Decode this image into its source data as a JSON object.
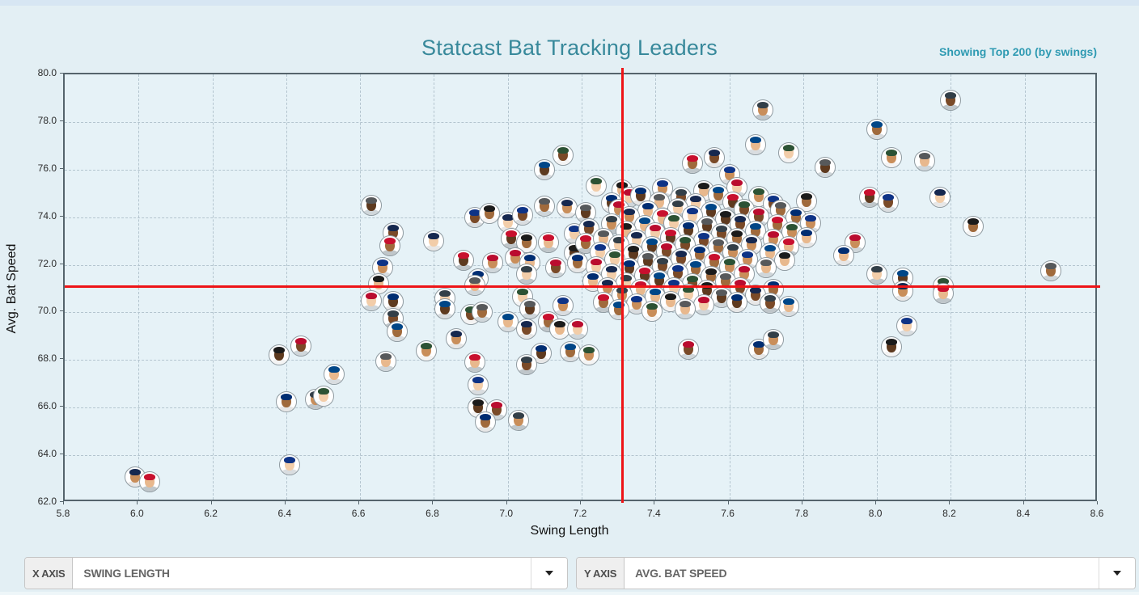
{
  "header": {
    "title": "Statcast Bat Tracking Leaders",
    "subtitle_right": "Showing Top 200 (by swings)"
  },
  "controls": {
    "x_axis": {
      "label": "X AXIS",
      "value": "SWING LENGTH",
      "dropdown_icon": "caret-down"
    },
    "y_axis": {
      "label": "Y AXIS",
      "value": "AVG. BAT SPEED",
      "dropdown_icon": "caret-down"
    }
  },
  "colors": {
    "title_teal": "#38899b",
    "note_teal": "#2e9ab2",
    "crosshair_red": "#ee1417",
    "plot_bg": "#e6f2f7",
    "page_bg": "#e3eff4",
    "grid": "#b4c5cf"
  },
  "avatar_palette": {
    "caps": [
      "#16284f",
      "#c8102e",
      "#0e3386",
      "#1b1b1b",
      "#ba0c2f",
      "#002d72",
      "#333f48",
      "#004687",
      "#2c5234",
      "#57595b"
    ],
    "skins": [
      "#f2cda9",
      "#e8b88d",
      "#c98e5a",
      "#a06a3c",
      "#7a4a28",
      "#5e3a1f"
    ],
    "jerseys": [
      "#f4f4f4",
      "#e7e7e7",
      "#d9dde0",
      "#cfd6da",
      "#bfc6ca"
    ]
  },
  "chart_data": {
    "type": "scatter",
    "title": "Statcast Bat Tracking Leaders",
    "xlabel": "Swing Length",
    "ylabel": "Avg. Bat Speed",
    "xlim": [
      5.8,
      8.6
    ],
    "ylim": [
      62.0,
      80.0
    ],
    "x_ticks": [
      5.8,
      6.0,
      6.2,
      6.4,
      6.6,
      6.8,
      7.0,
      7.2,
      7.4,
      7.6,
      7.8,
      8.0,
      8.2,
      8.4,
      8.6
    ],
    "y_ticks": [
      62.0,
      64.0,
      66.0,
      68.0,
      70.0,
      72.0,
      74.0,
      76.0,
      78.0,
      80.0
    ],
    "grid": "dashed",
    "legend": "none",
    "marker": "player-headshot-circle",
    "avg_lines": {
      "x": 7.31,
      "y": 71.1,
      "color": "#ee1417"
    },
    "points": [
      [
        5.99,
        63.1
      ],
      [
        6.03,
        62.9
      ],
      [
        6.41,
        63.6
      ],
      [
        6.38,
        68.2
      ],
      [
        6.44,
        68.6
      ],
      [
        6.4,
        66.25
      ],
      [
        6.48,
        66.35
      ],
      [
        6.53,
        67.4
      ],
      [
        6.5,
        66.5
      ],
      [
        6.63,
        74.5
      ],
      [
        6.69,
        73.35
      ],
      [
        6.68,
        72.8
      ],
      [
        6.66,
        71.9
      ],
      [
        6.65,
        71.2
      ],
      [
        6.63,
        70.5
      ],
      [
        6.69,
        70.45
      ],
      [
        6.69,
        69.75
      ],
      [
        6.7,
        69.2
      ],
      [
        6.78,
        68.4
      ],
      [
        6.67,
        67.95
      ],
      [
        6.8,
        73.0
      ],
      [
        6.88,
        72.2
      ],
      [
        6.91,
        74.0
      ],
      [
        6.95,
        74.15
      ],
      [
        6.96,
        72.1
      ],
      [
        6.92,
        71.4
      ],
      [
        6.83,
        70.6
      ],
      [
        6.83,
        70.15
      ],
      [
        6.9,
        69.9
      ],
      [
        6.93,
        70.0
      ],
      [
        6.86,
        68.9
      ],
      [
        6.91,
        67.9
      ],
      [
        6.92,
        66.95
      ],
      [
        6.92,
        66.0
      ],
      [
        6.97,
        65.9
      ],
      [
        6.94,
        65.4
      ],
      [
        7.03,
        65.45
      ],
      [
        7.0,
        69.6
      ],
      [
        7.04,
        70.65
      ],
      [
        7.06,
        70.15
      ],
      [
        7.05,
        69.3
      ],
      [
        7.11,
        69.6
      ],
      [
        7.15,
        70.3
      ],
      [
        7.14,
        69.3
      ],
      [
        7.19,
        69.3
      ],
      [
        7.09,
        68.3
      ],
      [
        7.05,
        67.8
      ],
      [
        7.17,
        68.35
      ],
      [
        7.22,
        68.2
      ],
      [
        6.91,
        71.15
      ],
      [
        7.0,
        73.8
      ],
      [
        7.01,
        73.1
      ],
      [
        7.04,
        74.1
      ],
      [
        7.05,
        72.95
      ],
      [
        7.02,
        72.3
      ],
      [
        7.06,
        72.1
      ],
      [
        7.05,
        71.6
      ],
      [
        7.1,
        76.0
      ],
      [
        7.15,
        76.6
      ],
      [
        7.1,
        74.45
      ],
      [
        7.16,
        74.4
      ],
      [
        7.11,
        72.95
      ],
      [
        7.18,
        73.3
      ],
      [
        7.18,
        72.5
      ],
      [
        7.13,
        71.9
      ],
      [
        7.19,
        72.1
      ],
      [
        7.69,
        78.5
      ],
      [
        7.67,
        77.05
      ],
      [
        7.76,
        76.7
      ],
      [
        7.86,
        76.1
      ],
      [
        7.56,
        76.5
      ],
      [
        7.5,
        76.25
      ],
      [
        7.6,
        75.8
      ],
      [
        7.31,
        75.15
      ],
      [
        7.33,
        74.85
      ],
      [
        7.28,
        74.6
      ],
      [
        8.2,
        78.9
      ],
      [
        8.0,
        77.7
      ],
      [
        8.04,
        76.5
      ],
      [
        8.13,
        76.35
      ],
      [
        8.17,
        74.85
      ],
      [
        7.98,
        74.85
      ],
      [
        8.03,
        74.65
      ],
      [
        8.26,
        73.6
      ],
      [
        7.94,
        72.95
      ],
      [
        7.91,
        72.4
      ],
      [
        8.0,
        71.6
      ],
      [
        8.07,
        71.45
      ],
      [
        8.18,
        71.1
      ],
      [
        8.47,
        71.75
      ],
      [
        8.07,
        70.9
      ],
      [
        8.18,
        70.8
      ],
      [
        8.08,
        69.45
      ],
      [
        8.04,
        68.55
      ],
      [
        7.49,
        68.45
      ],
      [
        7.68,
        68.45
      ],
      [
        7.72,
        68.85
      ],
      [
        7.76,
        70.25
      ],
      [
        7.24,
        75.3
      ],
      [
        7.21,
        74.2
      ],
      [
        7.22,
        73.5
      ],
      [
        7.21,
        72.9
      ],
      [
        7.42,
        75.22
      ],
      [
        7.53,
        75.12
      ],
      [
        7.62,
        75.25
      ],
      [
        7.36,
        74.92
      ],
      [
        7.47,
        74.85
      ],
      [
        7.57,
        74.95
      ],
      [
        7.68,
        74.88
      ],
      [
        7.41,
        74.62
      ],
      [
        7.51,
        74.55
      ],
      [
        7.61,
        74.65
      ],
      [
        7.72,
        74.58
      ],
      [
        7.81,
        74.68
      ],
      [
        7.3,
        74.32
      ],
      [
        7.38,
        74.25
      ],
      [
        7.46,
        74.35
      ],
      [
        7.55,
        74.22
      ],
      [
        7.64,
        74.32
      ],
      [
        7.74,
        74.28
      ],
      [
        7.33,
        74.02
      ],
      [
        7.42,
        73.95
      ],
      [
        7.5,
        74.05
      ],
      [
        7.59,
        73.92
      ],
      [
        7.68,
        74.02
      ],
      [
        7.78,
        73.98
      ],
      [
        7.28,
        73.72
      ],
      [
        7.37,
        73.65
      ],
      [
        7.45,
        73.75
      ],
      [
        7.54,
        73.62
      ],
      [
        7.63,
        73.72
      ],
      [
        7.73,
        73.68
      ],
      [
        7.82,
        73.75
      ],
      [
        7.32,
        73.42
      ],
      [
        7.4,
        73.35
      ],
      [
        7.49,
        73.45
      ],
      [
        7.58,
        73.32
      ],
      [
        7.67,
        73.42
      ],
      [
        7.77,
        73.38
      ],
      [
        7.26,
        73.12
      ],
      [
        7.35,
        73.05
      ],
      [
        7.44,
        73.15
      ],
      [
        7.53,
        73.02
      ],
      [
        7.62,
        73.12
      ],
      [
        7.72,
        73.08
      ],
      [
        7.81,
        73.15
      ],
      [
        7.3,
        72.82
      ],
      [
        7.39,
        72.75
      ],
      [
        7.48,
        72.85
      ],
      [
        7.57,
        72.72
      ],
      [
        7.66,
        72.82
      ],
      [
        7.76,
        72.78
      ],
      [
        7.25,
        72.52
      ],
      [
        7.34,
        72.45
      ],
      [
        7.43,
        72.55
      ],
      [
        7.52,
        72.42
      ],
      [
        7.61,
        72.52
      ],
      [
        7.71,
        72.48
      ],
      [
        7.29,
        72.22
      ],
      [
        7.38,
        72.15
      ],
      [
        7.47,
        72.25
      ],
      [
        7.56,
        72.12
      ],
      [
        7.65,
        72.22
      ],
      [
        7.75,
        72.18
      ],
      [
        7.24,
        71.92
      ],
      [
        7.33,
        71.85
      ],
      [
        7.42,
        71.95
      ],
      [
        7.51,
        71.82
      ],
      [
        7.6,
        71.92
      ],
      [
        7.7,
        71.88
      ],
      [
        7.28,
        71.62
      ],
      [
        7.37,
        71.55
      ],
      [
        7.46,
        71.65
      ],
      [
        7.55,
        71.52
      ],
      [
        7.64,
        71.62
      ],
      [
        7.23,
        71.32
      ],
      [
        7.32,
        71.25
      ],
      [
        7.41,
        71.35
      ],
      [
        7.5,
        71.22
      ],
      [
        7.59,
        71.32
      ],
      [
        7.27,
        71.02
      ],
      [
        7.36,
        70.95
      ],
      [
        7.45,
        71.05
      ],
      [
        7.54,
        70.92
      ],
      [
        7.63,
        71.02
      ],
      [
        7.72,
        70.98
      ],
      [
        7.31,
        70.72
      ],
      [
        7.4,
        70.65
      ],
      [
        7.49,
        70.75
      ],
      [
        7.58,
        70.62
      ],
      [
        7.67,
        70.72
      ],
      [
        7.26,
        70.42
      ],
      [
        7.35,
        70.35
      ],
      [
        7.44,
        70.45
      ],
      [
        7.53,
        70.32
      ],
      [
        7.62,
        70.42
      ],
      [
        7.71,
        70.38
      ],
      [
        7.3,
        70.12
      ],
      [
        7.39,
        70.05
      ],
      [
        7.48,
        70.15
      ]
    ]
  }
}
